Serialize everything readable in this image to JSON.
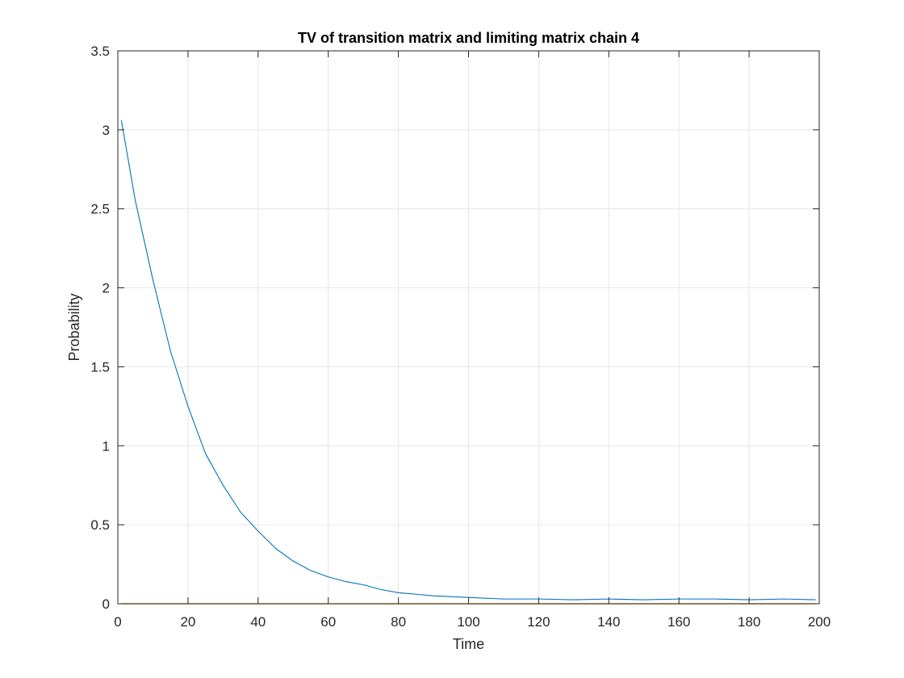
{
  "chart_data": {
    "type": "line",
    "title": "TV of transition matrix and limiting matrix chain 4",
    "xlabel": "Time",
    "ylabel": "Probability",
    "xlim": [
      0,
      200
    ],
    "ylim": [
      0,
      3.5
    ],
    "xticks": [
      0,
      20,
      40,
      60,
      80,
      100,
      120,
      140,
      160,
      180,
      200
    ],
    "yticks": [
      0,
      0.5,
      1,
      1.5,
      2,
      2.5,
      3,
      3.5
    ],
    "xtick_labels": [
      "0",
      "20",
      "40",
      "60",
      "80",
      "100",
      "120",
      "140",
      "160",
      "180",
      "200"
    ],
    "ytick_labels": [
      "0",
      "0.5",
      "1",
      "1.5",
      "2",
      "2.5",
      "3",
      "3.5"
    ],
    "grid": true,
    "legend": "none",
    "series": [
      {
        "color": "#0072BD",
        "x": [
          1,
          5,
          10,
          15,
          20,
          25,
          30,
          35,
          40,
          45,
          50,
          55,
          60,
          65,
          70,
          75,
          80,
          85,
          90,
          95,
          100,
          110,
          120,
          130,
          140,
          150,
          160,
          170,
          180,
          190,
          199
        ],
        "y": [
          3.06,
          2.55,
          2.05,
          1.6,
          1.25,
          0.95,
          0.75,
          0.58,
          0.46,
          0.35,
          0.27,
          0.21,
          0.17,
          0.14,
          0.12,
          0.09,
          0.07,
          0.06,
          0.05,
          0.045,
          0.04,
          0.03,
          0.03,
          0.025,
          0.03,
          0.025,
          0.03,
          0.03,
          0.025,
          0.03,
          0.025
        ]
      },
      {
        "color": "#EDB120",
        "x": [
          1,
          199
        ],
        "y": [
          0,
          0
        ]
      }
    ]
  }
}
